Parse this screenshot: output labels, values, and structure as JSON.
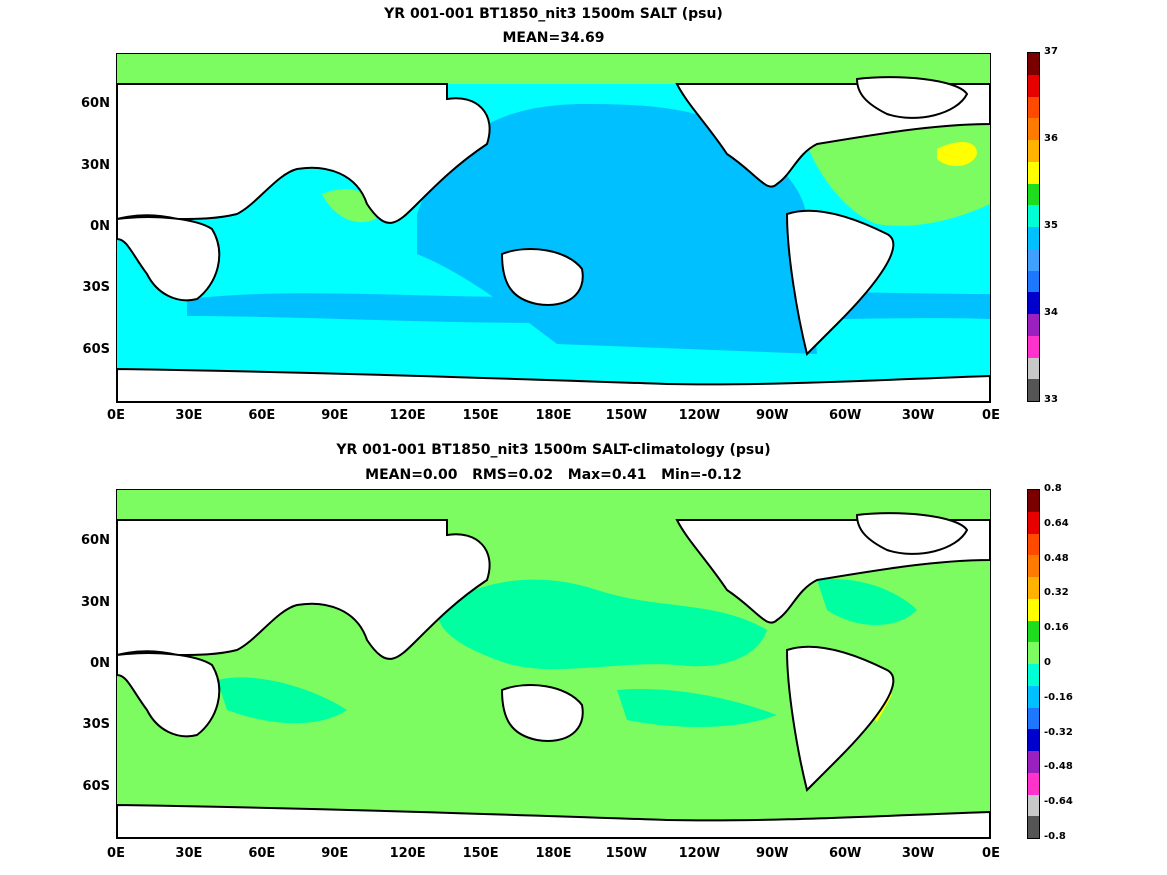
{
  "panels": [
    {
      "title_line1": "YR 001-001 BT1850_nit3 1500m SALT (psu)",
      "title_line2": "MEAN=34.69",
      "colorbar": {
        "colors": [
          "#555555",
          "#c8c8c8",
          "#ff33cc",
          "#9b20c0",
          "#0000cc",
          "#1e78ff",
          "#3fa0ff",
          "#00c0ff",
          "#00ffd4",
          "#1edc1e",
          "#ffff00",
          "#ffb300",
          "#ff7a00",
          "#ff4a00",
          "#e60000",
          "#7a0000"
        ],
        "labels": [
          "33",
          "34",
          "35",
          "36",
          "37"
        ]
      }
    },
    {
      "title_line1": "YR 001-001 BT1850_nit3 1500m SALT-climatology (psu)",
      "title_line2": "MEAN=0.00   RMS=0.02   Max=0.41   Min=-0.12",
      "colorbar": {
        "colors": [
          "#555555",
          "#c8c8c8",
          "#ff33cc",
          "#9b20c0",
          "#0000cc",
          "#1e78ff",
          "#00c0ff",
          "#00ffd4",
          "#7cfc60",
          "#1edc1e",
          "#ffff00",
          "#ffb300",
          "#ff7a00",
          "#ff4a00",
          "#e60000",
          "#7a0000"
        ],
        "labels": [
          "0.8",
          "0.64",
          "0.48",
          "0.32",
          "0.16",
          "0",
          "-0.16",
          "-0.32",
          "-0.48",
          "-0.64",
          "-0.8"
        ]
      }
    }
  ],
  "axes": {
    "lat_labels": [
      "60N",
      "30N",
      "0N",
      "30S",
      "60S"
    ],
    "lon_labels": [
      "0E",
      "30E",
      "60E",
      "90E",
      "120E",
      "150E",
      "180E",
      "150W",
      "120W",
      "90W",
      "60W",
      "30W",
      "0E"
    ]
  },
  "field_colors": {
    "top_ocean": "#00ffff",
    "top_pacific": "#00c0ff",
    "top_atlantic": "#7cfc60",
    "top_arctic": "#7cfc60",
    "bottom_ocean": "#7cfc60",
    "bottom_alt": "#00ffa0",
    "land": "#ffffff",
    "coast": "#000000"
  }
}
